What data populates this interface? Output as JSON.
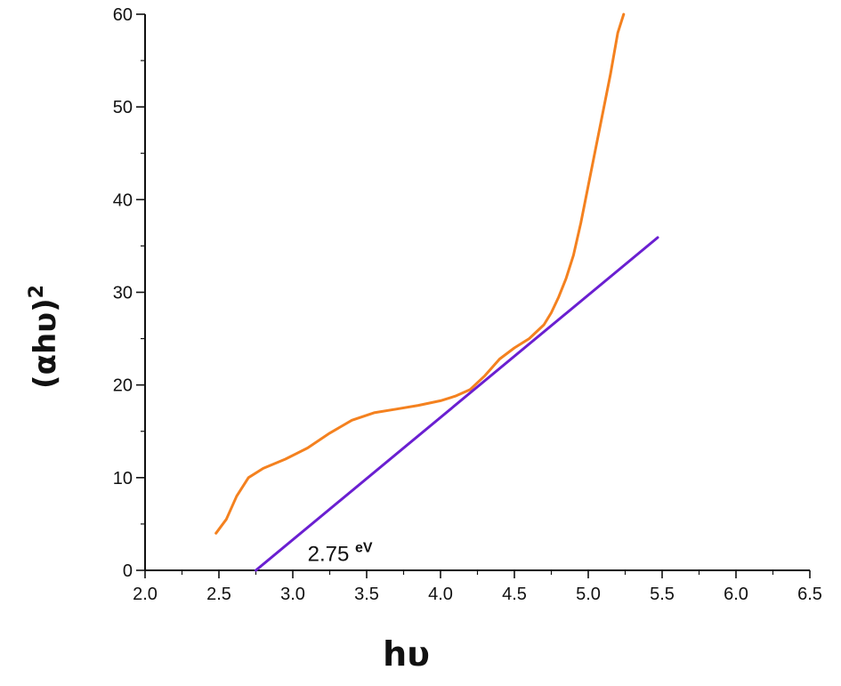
{
  "chart_data": {
    "type": "line",
    "xlabel": "hυ",
    "ylabel_base": "(αhυ)",
    "ylabel_sup": "2",
    "xlim": [
      2.0,
      6.5
    ],
    "ylim": [
      0,
      60
    ],
    "xticks": [
      "2.0",
      "2.5",
      "3.0",
      "3.5",
      "4.0",
      "4.5",
      "5.0",
      "5.5",
      "6.0",
      "6.5"
    ],
    "yticks": [
      "0",
      "10",
      "20",
      "30",
      "40",
      "50",
      "60"
    ],
    "grid": false,
    "legend": "none",
    "series": [
      {
        "color": "#f4811f",
        "x": [
          2.48,
          2.55,
          2.62,
          2.7,
          2.8,
          2.95,
          3.1,
          3.25,
          3.4,
          3.55,
          3.7,
          3.85,
          4.0,
          4.1,
          4.2,
          4.3,
          4.4,
          4.5,
          4.6,
          4.7,
          4.75,
          4.8,
          4.85,
          4.9,
          4.95,
          5.0,
          5.05,
          5.1,
          5.15,
          5.2,
          5.24
        ],
        "y": [
          4.0,
          5.5,
          8.0,
          10.0,
          11.0,
          12.0,
          13.2,
          14.8,
          16.2,
          17.0,
          17.4,
          17.8,
          18.3,
          18.8,
          19.5,
          21.0,
          22.8,
          24.0,
          25.0,
          26.5,
          27.8,
          29.5,
          31.5,
          34.0,
          37.5,
          41.5,
          45.5,
          49.5,
          53.5,
          58.0,
          60.0
        ]
      },
      {
        "color": "#6a1fd1",
        "x": [
          2.75,
          5.47
        ],
        "y": [
          0,
          35.9
        ]
      }
    ],
    "annotation": {
      "value": "2.75",
      "unit": "eV",
      "x": 3.1,
      "y": 1.0
    }
  }
}
